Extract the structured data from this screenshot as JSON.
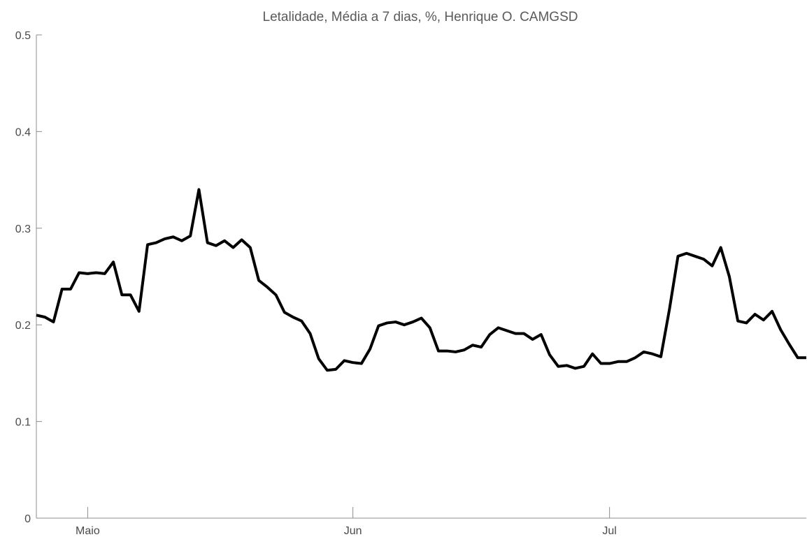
{
  "chart_data": {
    "type": "line",
    "title": "Letalidade, Média a 7 dias, %, Henrique O. CAMGSD",
    "xlabel": "",
    "ylabel": "",
    "ylim": [
      0,
      0.5
    ],
    "yticks": [
      {
        "value": 0,
        "label": "0"
      },
      {
        "value": 0.1,
        "label": "0.1"
      },
      {
        "value": 0.2,
        "label": "0.2"
      },
      {
        "value": 0.3,
        "label": "0.3"
      },
      {
        "value": 0.4,
        "label": "0.4"
      },
      {
        "value": 0.5,
        "label": "0.5"
      }
    ],
    "xlim": [
      "2020-04-25",
      "2020-07-24"
    ],
    "xticks": [
      {
        "date": "2020-05-01",
        "label": "Maio"
      },
      {
        "date": "2020-06-01",
        "label": "Jun"
      },
      {
        "date": "2020-07-01",
        "label": "Jul"
      }
    ],
    "grid": false,
    "series": [
      {
        "color": "#000000",
        "x": [
          "2020-04-25",
          "2020-04-26",
          "2020-04-27",
          "2020-04-28",
          "2020-04-29",
          "2020-04-30",
          "2020-05-01",
          "2020-05-02",
          "2020-05-03",
          "2020-05-04",
          "2020-05-05",
          "2020-05-06",
          "2020-05-07",
          "2020-05-08",
          "2020-05-09",
          "2020-05-10",
          "2020-05-11",
          "2020-05-12",
          "2020-05-13",
          "2020-05-14",
          "2020-05-15",
          "2020-05-16",
          "2020-05-17",
          "2020-05-18",
          "2020-05-19",
          "2020-05-20",
          "2020-05-21",
          "2020-05-22",
          "2020-05-23",
          "2020-05-24",
          "2020-05-25",
          "2020-05-26",
          "2020-05-27",
          "2020-05-28",
          "2020-05-29",
          "2020-05-30",
          "2020-05-31",
          "2020-06-01",
          "2020-06-02",
          "2020-06-03",
          "2020-06-04",
          "2020-06-05",
          "2020-06-06",
          "2020-06-07",
          "2020-06-08",
          "2020-06-09",
          "2020-06-10",
          "2020-06-11",
          "2020-06-12",
          "2020-06-13",
          "2020-06-14",
          "2020-06-15",
          "2020-06-16",
          "2020-06-17",
          "2020-06-18",
          "2020-06-19",
          "2020-06-20",
          "2020-06-21",
          "2020-06-22",
          "2020-06-23",
          "2020-06-24",
          "2020-06-25",
          "2020-06-26",
          "2020-06-27",
          "2020-06-28",
          "2020-06-29",
          "2020-06-30",
          "2020-07-01",
          "2020-07-02",
          "2020-07-03",
          "2020-07-04",
          "2020-07-05",
          "2020-07-06",
          "2020-07-07",
          "2020-07-08",
          "2020-07-09",
          "2020-07-10",
          "2020-07-11",
          "2020-07-12",
          "2020-07-13",
          "2020-07-14",
          "2020-07-15",
          "2020-07-16",
          "2020-07-17",
          "2020-07-18",
          "2020-07-19",
          "2020-07-20",
          "2020-07-21",
          "2020-07-22",
          "2020-07-23",
          "2020-07-24"
        ],
        "values": [
          0.21,
          0.208,
          0.203,
          0.237,
          0.237,
          0.254,
          0.253,
          0.254,
          0.253,
          0.265,
          0.231,
          0.231,
          0.214,
          0.283,
          0.285,
          0.289,
          0.291,
          0.287,
          0.292,
          0.34,
          0.285,
          0.282,
          0.287,
          0.28,
          0.288,
          0.28,
          0.246,
          0.239,
          0.231,
          0.213,
          0.208,
          0.204,
          0.191,
          0.165,
          0.153,
          0.154,
          0.163,
          0.161,
          0.16,
          0.175,
          0.199,
          0.202,
          0.203,
          0.2,
          0.203,
          0.207,
          0.197,
          0.173,
          0.173,
          0.172,
          0.174,
          0.179,
          0.177,
          0.19,
          0.197,
          0.194,
          0.191,
          0.191,
          0.185,
          0.19,
          0.169,
          0.157,
          0.158,
          0.155,
          0.157,
          0.17,
          0.16,
          0.16,
          0.162,
          0.162,
          0.166,
          0.172,
          0.17,
          0.167,
          0.216,
          0.271,
          0.274,
          0.271,
          0.268,
          0.261,
          0.28,
          0.25,
          0.204,
          0.202,
          0.211,
          0.205,
          0.214,
          0.195,
          0.18,
          0.166,
          0.166
        ]
      }
    ]
  }
}
